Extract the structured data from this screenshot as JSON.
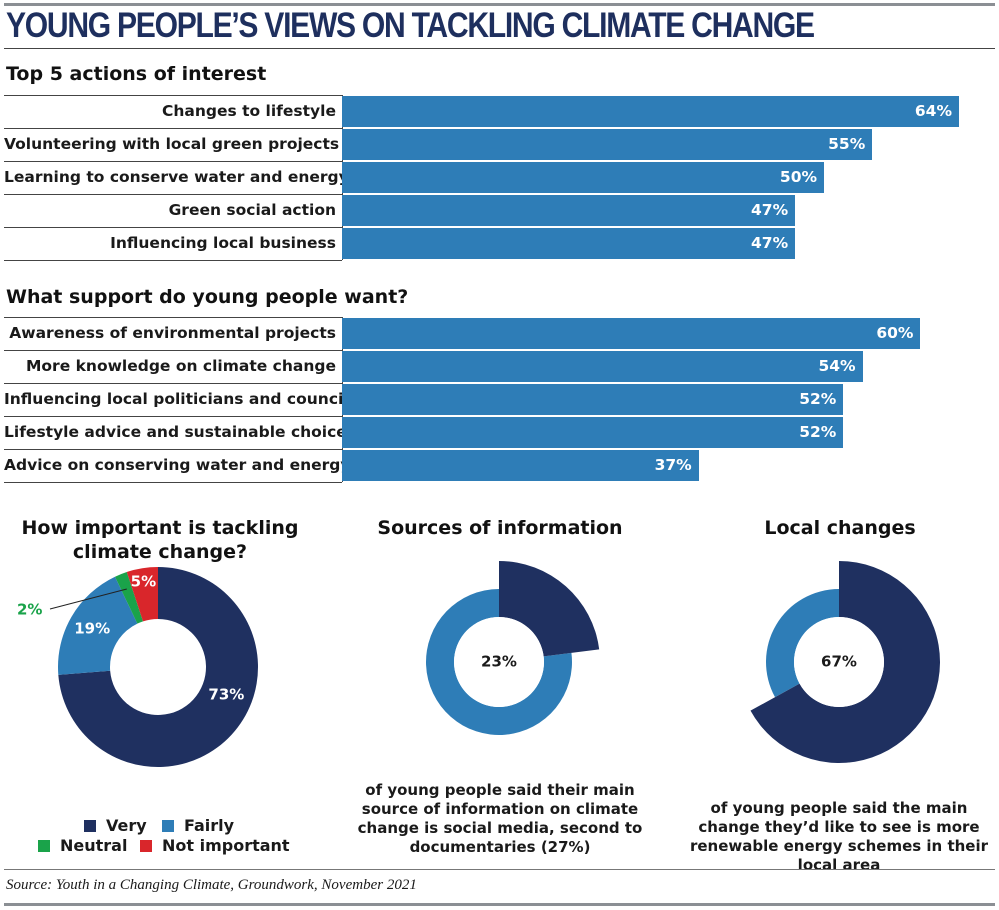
{
  "title": "YOUNG PEOPLE’S VIEWS ON TACKLING CLIMATE CHANGE",
  "colors": {
    "bar": "#2e7db7",
    "very": "#1f3060",
    "fairly": "#2e7db7",
    "neutral": "#1aa34a",
    "not_important": "#d9262b",
    "rule": "#8b8f94"
  },
  "chart_data": [
    {
      "type": "bar",
      "orientation": "horizontal",
      "title": "Top 5 actions of interest",
      "categories": [
        "Changes to lifestyle",
        "Volunteering with local green projects",
        "Learning to conserve water and energy",
        "Green social action",
        "Influencing local business"
      ],
      "values": [
        64,
        55,
        50,
        47,
        47
      ],
      "value_labels": [
        "64%",
        "55%",
        "50%",
        "47%",
        "47%"
      ],
      "unit": "%",
      "xlim": [
        0,
        64
      ]
    },
    {
      "type": "bar",
      "orientation": "horizontal",
      "title": "What support do young people want?",
      "categories": [
        "Awareness of environmental projects",
        "More knowledge on climate change",
        "Influencing local politicians and council",
        "Lifestyle advice and sustainable choices",
        "Advice on conserving water and energy"
      ],
      "values": [
        60,
        54,
        52,
        52,
        37
      ],
      "value_labels": [
        "60%",
        "54%",
        "52%",
        "52%",
        "37%"
      ],
      "unit": "%",
      "xlim": [
        0,
        64
      ]
    },
    {
      "type": "pie",
      "variant": "donut",
      "title": "How important is tackling climate change?",
      "categories": [
        "Very",
        "Fairly",
        "Neutral",
        "Not important"
      ],
      "values": [
        73,
        19,
        2,
        5
      ],
      "value_labels": [
        "73%",
        "19%",
        "2%",
        "5%"
      ],
      "legend": "bottom"
    },
    {
      "type": "pie",
      "variant": "donut",
      "title": "Sources of information",
      "values": [
        23,
        77
      ],
      "center_label": "23%",
      "caption": "of young people said their main source of information on climate change is social media, second to documentaries (27%)"
    },
    {
      "type": "pie",
      "variant": "donut",
      "title": "Local changes",
      "values": [
        67,
        33
      ],
      "center_label": "67%",
      "caption": "of young people said the main change they’d like to see is more renewable energy schemes in their local area"
    }
  ],
  "source": "Source: Youth in a Changing Climate, Groundwork, November 2021"
}
